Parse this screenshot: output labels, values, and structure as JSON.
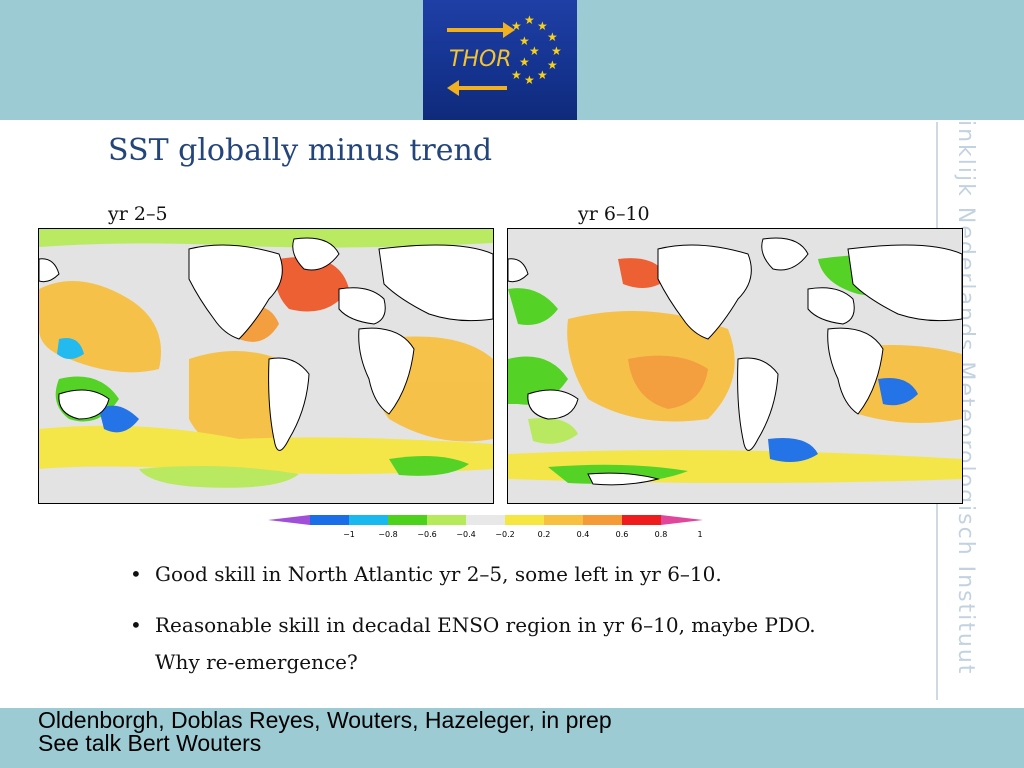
{
  "logo": {
    "text": "THOR",
    "star_color": "#f7d117",
    "arrow_color": "#f2b01e"
  },
  "watermark": {
    "text": "inklijk Nederlands Meteorologisch Instituut"
  },
  "slide": {
    "title": "SST globally minus trend",
    "panels": [
      {
        "label": "yr 2–5"
      },
      {
        "label": "yr 6–10"
      }
    ]
  },
  "colorbar": {
    "ticks": [
      "−1",
      "−0.8",
      "−0.6",
      "−0.4",
      "−0.2",
      "0.2",
      "0.4",
      "0.6",
      "0.8",
      "1"
    ],
    "colors": [
      "#a050d8",
      "#1a6ee8",
      "#19b9f0",
      "#4dd21c",
      "#b6ea5a",
      "#e8e8e8",
      "#f5e641",
      "#f8c040",
      "#f49b37",
      "#ee1c1c",
      "#e0479c"
    ]
  },
  "bullets": [
    {
      "text": "Good skill in North Atlantic yr 2–5, some left in yr 6–10."
    },
    {
      "line1": "Reasonable skill in decadal ENSO region in yr 6–10, maybe PDO.",
      "line2": "Why re-emergence?"
    }
  ],
  "footer": {
    "line1": "Oldenborgh, Doblas Reyes, Wouters, Hazeleger, in prep",
    "line2": "See talk Bert Wouters"
  }
}
